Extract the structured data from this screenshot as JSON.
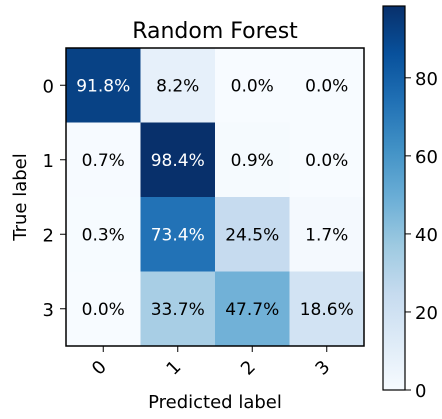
{
  "chart_data": {
    "type": "heatmap",
    "title": "Random Forest",
    "xlabel": "Predicted label",
    "ylabel": "True label",
    "x_categories": [
      "0",
      "1",
      "2",
      "3"
    ],
    "y_categories": [
      "0",
      "1",
      "2",
      "3"
    ],
    "values": [
      [
        91.8,
        8.2,
        0.0,
        0.0
      ],
      [
        0.7,
        98.4,
        0.9,
        0.0
      ],
      [
        0.3,
        73.4,
        24.5,
        1.7
      ],
      [
        0.0,
        33.7,
        47.7,
        18.6
      ]
    ],
    "cell_labels": [
      [
        "91.8%",
        "8.2%",
        "0.0%",
        "0.0%"
      ],
      [
        "0.7%",
        "98.4%",
        "0.9%",
        "0.0%"
      ],
      [
        "0.3%",
        "73.4%",
        "24.5%",
        "1.7%"
      ],
      [
        "0.0%",
        "33.7%",
        "47.7%",
        "18.6%"
      ]
    ],
    "colormap": "Blues",
    "colorbar": {
      "range": [
        0,
        98.4
      ],
      "ticks": [
        0,
        20,
        40,
        60,
        80
      ],
      "tick_labels": [
        "0",
        "20",
        "40",
        "60",
        "80"
      ]
    }
  }
}
